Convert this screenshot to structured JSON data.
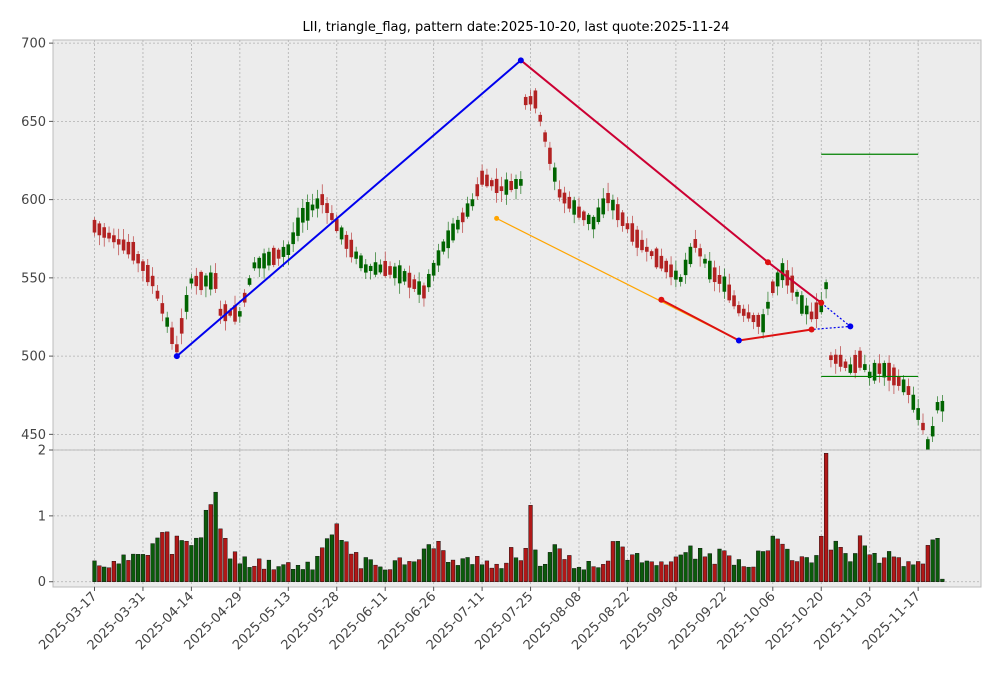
{
  "chart_data": {
    "type": "candlestick",
    "title": "LII, triangle_flag, pattern date:2025-10-20, last quote:2025-11-24",
    "price_panel": {
      "ylim": [
        440,
        702
      ],
      "yticks": [
        450,
        500,
        550,
        600,
        650,
        700
      ],
      "grid": true
    },
    "volume_panel": {
      "ylim": [
        -0.08,
        2.0
      ],
      "yticks": [
        0,
        1,
        2
      ],
      "grid": true
    },
    "x_tick_labels": [
      "2025-03-17",
      "2025-03-31",
      "2025-04-14",
      "2025-04-29",
      "2025-05-13",
      "2025-05-28",
      "2025-06-11",
      "2025-06-26",
      "2025-07-11",
      "2025-07-25",
      "2025-08-08",
      "2025-08-22",
      "2025-09-08",
      "2025-09-22",
      "2025-10-06",
      "2025-10-20",
      "2025-11-03",
      "2025-11-17"
    ],
    "x_tick_index": [
      0,
      10,
      20,
      30,
      40,
      50,
      60,
      70,
      80,
      90,
      100,
      110,
      120,
      130,
      140,
      150,
      160,
      170
    ],
    "candles": {
      "count": 176,
      "start_index": 0,
      "anchors": [
        [
          0,
          583
        ],
        [
          8,
          567
        ],
        [
          12,
          548
        ],
        [
          16,
          513
        ],
        [
          17,
          505
        ],
        [
          20,
          548
        ],
        [
          25,
          548
        ],
        [
          26,
          528
        ],
        [
          30,
          527
        ],
        [
          33,
          558
        ],
        [
          40,
          568
        ],
        [
          43,
          590
        ],
        [
          47,
          600
        ],
        [
          52,
          573
        ],
        [
          56,
          556
        ],
        [
          60,
          556
        ],
        [
          64,
          551
        ],
        [
          68,
          541
        ],
        [
          72,
          570
        ],
        [
          78,
          598
        ],
        [
          80,
          614
        ],
        [
          84,
          607
        ],
        [
          88,
          611
        ],
        [
          89,
          663
        ],
        [
          91,
          664
        ],
        [
          94,
          628
        ],
        [
          96,
          604
        ],
        [
          100,
          592
        ],
        [
          103,
          585
        ],
        [
          106,
          601
        ],
        [
          110,
          583
        ],
        [
          113,
          571
        ],
        [
          117,
          560
        ],
        [
          121,
          549
        ],
        [
          124,
          572
        ],
        [
          127,
          555
        ],
        [
          130,
          546
        ],
        [
          133,
          530
        ],
        [
          136,
          524
        ],
        [
          138,
          521
        ],
        [
          140,
          544
        ],
        [
          142,
          554
        ],
        [
          144,
          546
        ],
        [
          146,
          533
        ],
        [
          148,
          526
        ],
        [
          150,
          532
        ],
        [
          151,
          545
        ],
        [
          152,
          499
        ],
        [
          154,
          497
        ],
        [
          156,
          492
        ],
        [
          158,
          498
        ],
        [
          160,
          488
        ],
        [
          162,
          492
        ],
        [
          164,
          490
        ],
        [
          166,
          484
        ],
        [
          168,
          478
        ],
        [
          170,
          463
        ],
        [
          171,
          455
        ],
        [
          172,
          443
        ],
        [
          173,
          452
        ],
        [
          174,
          468
        ],
        [
          175,
          468
        ]
      ],
      "up_color": "#006400",
      "down_color": "#b22222"
    },
    "volume": {
      "unit": "millions",
      "anchors": [
        [
          0,
          0.32
        ],
        [
          5,
          0.28
        ],
        [
          10,
          0.62
        ],
        [
          14,
          0.72
        ],
        [
          20,
          0.52
        ],
        [
          25,
          1.36
        ],
        [
          28,
          0.42
        ],
        [
          35,
          0.3
        ],
        [
          45,
          0.28
        ],
        [
          50,
          0.88
        ],
        [
          55,
          0.32
        ],
        [
          60,
          0.28
        ],
        [
          65,
          0.4
        ],
        [
          70,
          0.6
        ],
        [
          75,
          0.3
        ],
        [
          80,
          0.4
        ],
        [
          84,
          0.22
        ],
        [
          86,
          0.45
        ],
        [
          88,
          0.28
        ],
        [
          90,
          1.16
        ],
        [
          92,
          0.32
        ],
        [
          95,
          0.55
        ],
        [
          100,
          0.2
        ],
        [
          105,
          0.36
        ],
        [
          108,
          0.75
        ],
        [
          110,
          0.42
        ],
        [
          115,
          0.3
        ],
        [
          120,
          0.45
        ],
        [
          125,
          0.48
        ],
        [
          130,
          0.4
        ],
        [
          135,
          0.3
        ],
        [
          140,
          0.65
        ],
        [
          145,
          0.5
        ],
        [
          148,
          0.4
        ],
        [
          150,
          0.78
        ],
        [
          151,
          1.95
        ],
        [
          152,
          0.62
        ],
        [
          155,
          0.45
        ],
        [
          158,
          0.62
        ],
        [
          160,
          0.5
        ],
        [
          165,
          0.42
        ],
        [
          170,
          0.32
        ],
        [
          174,
          0.66
        ],
        [
          175,
          0.04
        ]
      ],
      "big_bars": [
        [
          25,
          1.36
        ],
        [
          50,
          0.88
        ],
        [
          90,
          1.16
        ],
        [
          151,
          1.95
        ],
        [
          141,
          0.65
        ],
        [
          174,
          0.66
        ]
      ]
    },
    "pattern": {
      "blue_line": [
        [
          17,
          500
        ],
        [
          88,
          689
        ]
      ],
      "red_upper": [
        [
          88,
          689
        ],
        [
          139,
          560
        ],
        [
          150,
          534
        ]
      ],
      "lower_red": [
        [
          117,
          536
        ],
        [
          133,
          510
        ],
        [
          148,
          517
        ]
      ],
      "orange_line": [
        [
          83,
          588
        ],
        [
          133,
          510
        ]
      ],
      "blue_dotted": [
        [
          150,
          534
        ],
        [
          156,
          519
        ],
        [
          148,
          517
        ]
      ],
      "targets": [
        {
          "y": 629,
          "x0": 150,
          "x1": 170,
          "color": "#008000"
        },
        {
          "y": 487,
          "x0": 150,
          "x1": 170,
          "color": "#008000"
        }
      ]
    }
  }
}
